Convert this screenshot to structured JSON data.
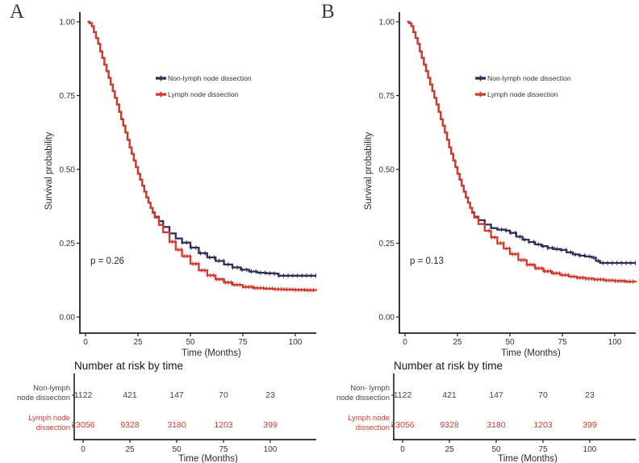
{
  "colors": {
    "non_lnd": "#312e58",
    "lnd": "#d43a2c",
    "axis": "#1f1f1f",
    "tick_text": "#333333",
    "risk_label_dark": "#45434f",
    "background": "#ffffff"
  },
  "figure": {
    "panels": [
      {
        "label": "A"
      },
      {
        "label": "B"
      }
    ]
  },
  "chart_data": [
    {
      "type": "line",
      "subtype": "kaplan-meier-step",
      "panel": "A",
      "title": "",
      "xlabel": "Time (Months)",
      "ylabel": "Survival probability",
      "xlim": [
        0,
        110
      ],
      "ylim": [
        0,
        1
      ],
      "xticks": [
        0,
        25,
        50,
        75,
        100
      ],
      "yticks": [
        0,
        0.25,
        0.5,
        0.75,
        1
      ],
      "ytick_labels": [
        "0.00",
        "0.25",
        "0.50",
        "0.75",
        "1.00"
      ],
      "grid": false,
      "legend_position": "inside-upper-right",
      "p_value": "p = 0.26",
      "series": [
        {
          "name": "Non-lymph node dissection",
          "color_key": "non_lnd",
          "x": [
            1,
            2,
            3,
            4,
            5,
            6,
            7,
            8,
            9,
            10,
            11,
            12,
            13,
            14,
            15,
            16,
            17,
            18,
            19,
            20,
            21,
            22,
            23,
            24,
            25,
            26,
            27,
            28,
            29,
            30,
            31,
            32,
            33,
            35,
            37,
            40,
            43,
            46,
            50,
            54,
            58,
            62,
            66,
            70,
            74,
            78,
            82,
            86,
            90,
            92,
            110
          ],
          "y": [
            1.0,
            0.995,
            0.985,
            0.965,
            0.945,
            0.925,
            0.9,
            0.878,
            0.855,
            0.833,
            0.81,
            0.788,
            0.765,
            0.743,
            0.72,
            0.695,
            0.67,
            0.648,
            0.625,
            0.6,
            0.575,
            0.553,
            0.53,
            0.508,
            0.485,
            0.465,
            0.445,
            0.425,
            0.405,
            0.387,
            0.37,
            0.355,
            0.34,
            0.325,
            0.305,
            0.283,
            0.266,
            0.252,
            0.235,
            0.216,
            0.202,
            0.19,
            0.178,
            0.168,
            0.16,
            0.154,
            0.15,
            0.148,
            0.147,
            0.14,
            0.14
          ]
        },
        {
          "name": "Lymph node dissection",
          "color_key": "lnd",
          "x": [
            1,
            2,
            3,
            4,
            5,
            6,
            7,
            8,
            9,
            10,
            11,
            12,
            13,
            14,
            15,
            16,
            17,
            18,
            19,
            20,
            21,
            22,
            23,
            24,
            25,
            26,
            27,
            28,
            29,
            30,
            31,
            32,
            33,
            35,
            37,
            40,
            43,
            46,
            50,
            54,
            58,
            62,
            66,
            70,
            75,
            80,
            85,
            90,
            95,
            100,
            105,
            110
          ],
          "y": [
            1.0,
            0.995,
            0.985,
            0.965,
            0.945,
            0.925,
            0.9,
            0.878,
            0.855,
            0.833,
            0.81,
            0.788,
            0.765,
            0.743,
            0.72,
            0.695,
            0.67,
            0.648,
            0.625,
            0.6,
            0.575,
            0.553,
            0.53,
            0.508,
            0.485,
            0.465,
            0.445,
            0.425,
            0.405,
            0.387,
            0.37,
            0.353,
            0.337,
            0.312,
            0.287,
            0.255,
            0.228,
            0.206,
            0.18,
            0.158,
            0.141,
            0.128,
            0.117,
            0.109,
            0.102,
            0.098,
            0.096,
            0.094,
            0.093,
            0.092,
            0.091,
            0.09
          ]
        }
      ],
      "risk_table": {
        "title": "Number at risk by time",
        "xlabel": "Time (Months)",
        "times": [
          0,
          25,
          50,
          75,
          100
        ],
        "rows": [
          {
            "label_lines": [
              "Non-lymph",
              "node dissection"
            ],
            "color_key": "risk_label_dark",
            "counts": [
              "1122",
              "421",
              "147",
              "70",
              "23"
            ]
          },
          {
            "label_lines": [
              "Lymph  node",
              "dissection"
            ],
            "color_key": "lnd",
            "counts": [
              "23056",
              "9328",
              "3180",
              "1203",
              "399"
            ]
          }
        ]
      }
    },
    {
      "type": "line",
      "subtype": "kaplan-meier-step",
      "panel": "B",
      "title": "",
      "xlabel": "Time (Months)",
      "ylabel": "Survival probability",
      "xlim": [
        0,
        110
      ],
      "ylim": [
        0,
        1
      ],
      "xticks": [
        0,
        25,
        50,
        75,
        100
      ],
      "yticks": [
        0,
        0.25,
        0.5,
        0.75,
        1
      ],
      "ytick_labels": [
        "0.00",
        "0.25",
        "0.50",
        "0.75",
        "1.00"
      ],
      "grid": false,
      "legend_position": "inside-upper-right",
      "p_value": "p = 0.13",
      "series": [
        {
          "name": "Non-lymph node dissection",
          "color_key": "non_lnd",
          "x": [
            1,
            2,
            3,
            4,
            5,
            6,
            7,
            8,
            9,
            10,
            11,
            12,
            13,
            14,
            15,
            16,
            17,
            18,
            19,
            20,
            21,
            22,
            23,
            24,
            25,
            26,
            27,
            28,
            29,
            30,
            31,
            32,
            33,
            35,
            38,
            41,
            44,
            48,
            50,
            53,
            56,
            59,
            62,
            65,
            68,
            71,
            74,
            77,
            80,
            83,
            86,
            89,
            91,
            93,
            110
          ],
          "y": [
            1.0,
            0.995,
            0.985,
            0.965,
            0.945,
            0.925,
            0.9,
            0.878,
            0.855,
            0.833,
            0.81,
            0.788,
            0.765,
            0.743,
            0.72,
            0.695,
            0.67,
            0.648,
            0.625,
            0.6,
            0.575,
            0.553,
            0.53,
            0.508,
            0.485,
            0.465,
            0.445,
            0.425,
            0.405,
            0.387,
            0.37,
            0.355,
            0.34,
            0.328,
            0.313,
            0.301,
            0.296,
            0.293,
            0.285,
            0.272,
            0.262,
            0.254,
            0.246,
            0.24,
            0.234,
            0.23,
            0.227,
            0.219,
            0.212,
            0.208,
            0.205,
            0.201,
            0.19,
            0.183,
            0.183
          ]
        },
        {
          "name": "Lymph node dissection",
          "color_key": "lnd",
          "x": [
            1,
            2,
            3,
            4,
            5,
            6,
            7,
            8,
            9,
            10,
            11,
            12,
            13,
            14,
            15,
            16,
            17,
            18,
            19,
            20,
            21,
            22,
            23,
            24,
            25,
            26,
            27,
            28,
            29,
            30,
            31,
            32,
            33,
            35,
            38,
            41,
            44,
            47,
            50,
            54,
            58,
            62,
            66,
            70,
            74,
            78,
            82,
            86,
            90,
            95,
            100,
            105,
            110
          ],
          "y": [
            1.0,
            0.995,
            0.985,
            0.965,
            0.945,
            0.925,
            0.9,
            0.878,
            0.855,
            0.833,
            0.81,
            0.788,
            0.765,
            0.743,
            0.72,
            0.695,
            0.67,
            0.648,
            0.625,
            0.6,
            0.575,
            0.553,
            0.53,
            0.508,
            0.485,
            0.465,
            0.445,
            0.425,
            0.405,
            0.387,
            0.37,
            0.353,
            0.337,
            0.315,
            0.292,
            0.27,
            0.25,
            0.232,
            0.213,
            0.193,
            0.177,
            0.165,
            0.155,
            0.148,
            0.142,
            0.137,
            0.133,
            0.13,
            0.127,
            0.124,
            0.122,
            0.12,
            0.118
          ]
        }
      ],
      "risk_table": {
        "title": "Number at risk by time",
        "xlabel": "Time (Months)",
        "times": [
          0,
          25,
          50,
          75,
          100
        ],
        "rows": [
          {
            "label_lines": [
              "Non- lymph",
              "node dissection"
            ],
            "color_key": "risk_label_dark",
            "counts": [
              "1122",
              "421",
              "147",
              "70",
              "23"
            ]
          },
          {
            "label_lines": [
              "Lymph  node",
              "dissection"
            ],
            "color_key": "lnd",
            "counts": [
              "23056",
              "9328",
              "3180",
              "1203",
              "399"
            ]
          }
        ]
      }
    }
  ]
}
